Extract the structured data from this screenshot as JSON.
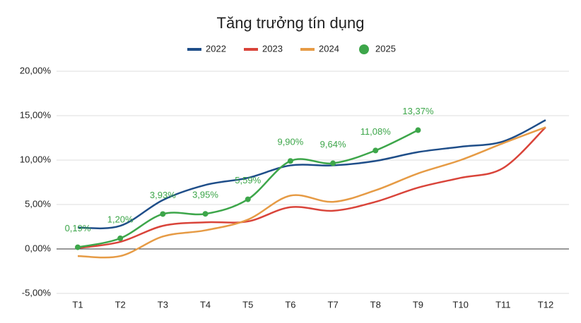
{
  "chart_data": {
    "type": "line",
    "title": "Tăng trưởng tín dụng",
    "categories": [
      "T1",
      "T2",
      "T3",
      "T4",
      "T5",
      "T6",
      "T7",
      "T8",
      "T9",
      "T10",
      "T11",
      "T12"
    ],
    "series": [
      {
        "name": "2022",
        "color": "#1f4e89",
        "values": [
          2.4,
          2.6,
          5.5,
          7.2,
          8.0,
          9.4,
          9.4,
          9.9,
          10.9,
          11.5,
          12.1,
          14.5
        ]
      },
      {
        "name": "2023",
        "color": "#d9443a",
        "values": [
          0.1,
          0.8,
          2.6,
          3.0,
          3.1,
          4.7,
          4.3,
          5.3,
          6.9,
          8.0,
          9.1,
          13.7
        ]
      },
      {
        "name": "2024",
        "color": "#e69b45",
        "values": [
          -0.8,
          -0.8,
          1.4,
          2.1,
          3.3,
          6.0,
          5.3,
          6.6,
          8.5,
          10.0,
          11.9,
          13.7
        ]
      },
      {
        "name": "2025",
        "color": "#3da64a",
        "markers": true,
        "values": [
          0.19,
          1.2,
          3.93,
          3.95,
          5.59,
          9.9,
          9.64,
          11.08,
          13.37,
          null,
          null,
          null
        ],
        "value_labels": [
          "0,19%",
          "1,20%",
          "3,93%",
          "3,95%",
          "5,59%",
          "9,90%",
          "9,64%",
          "11,08%",
          "13,37%",
          null,
          null,
          null
        ]
      }
    ],
    "ylim": [
      -5,
      20
    ],
    "yticks": [
      {
        "value": -5,
        "label": "-5,00%"
      },
      {
        "value": 0,
        "label": "0,00%"
      },
      {
        "value": 5,
        "label": "5,00%"
      },
      {
        "value": 10,
        "label": "10,00%"
      },
      {
        "value": 15,
        "label": "15,00%"
      },
      {
        "value": 20,
        "label": "20,00%"
      }
    ],
    "grid": true,
    "legend": "top"
  }
}
